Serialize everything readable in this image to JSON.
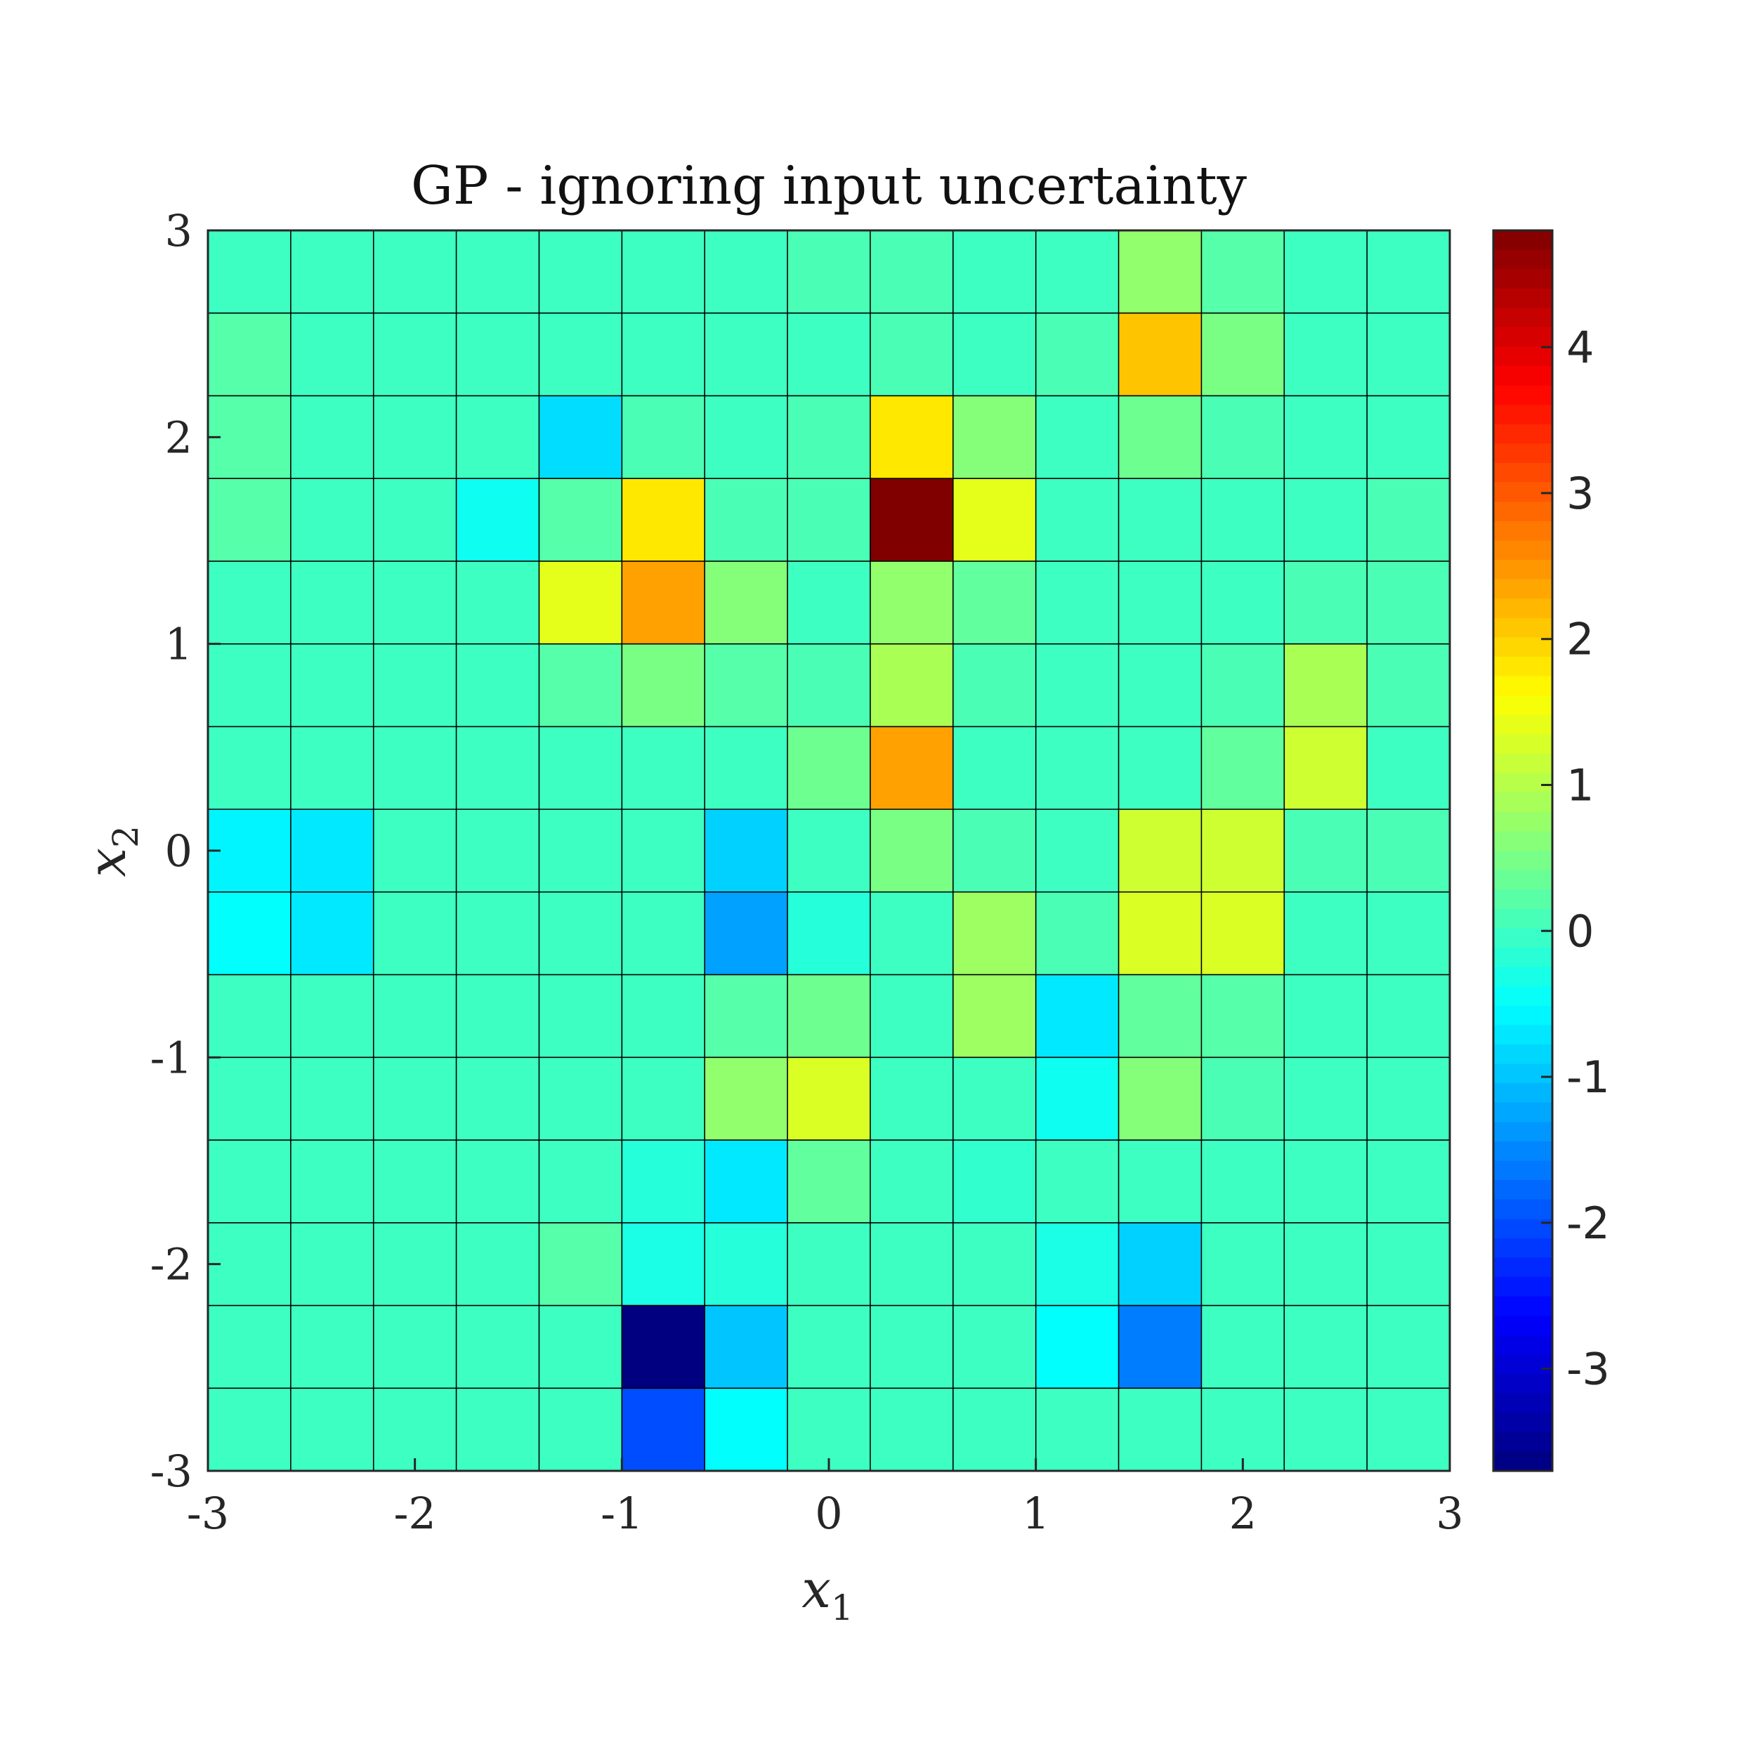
{
  "chart_data": {
    "type": "heatmap",
    "title": "GP - ignoring input uncertainty",
    "xlabel": "x",
    "xlabel_sub": "1",
    "ylabel": "x",
    "ylabel_sub": "2",
    "xlim": [
      -3,
      3
    ],
    "ylim": [
      -3,
      3
    ],
    "xticks": [
      -3,
      -2,
      -1,
      0,
      1,
      2,
      3
    ],
    "yticks": [
      -3,
      -2,
      -1,
      0,
      1,
      2,
      3
    ],
    "xtick_labels": [
      "-3",
      "-2",
      "-1",
      "0",
      "1",
      "2",
      "3"
    ],
    "ytick_labels": [
      "-3",
      "-2",
      "-1",
      "0",
      "1",
      "2",
      "3"
    ],
    "x_centers": [
      -2.8,
      -2.4,
      -2.0,
      -1.6,
      -1.2,
      -0.8,
      -0.4,
      0.0,
      0.4,
      0.8,
      1.2,
      1.6,
      2.0,
      2.4,
      2.8
    ],
    "y_centers": [
      2.8,
      2.4,
      2.0,
      1.6,
      1.2,
      0.8,
      0.4,
      0.0,
      -0.4,
      -0.8,
      -1.2,
      -1.6,
      -2.0,
      -2.4,
      -2.8
    ],
    "colormap": "jet",
    "colorbar": {
      "clim": [
        -3.7,
        4.8
      ],
      "ticks": [
        -3,
        -2,
        -1,
        0,
        1,
        2,
        3,
        4
      ],
      "tick_labels": [
        "-3",
        "-2",
        "-1",
        "0",
        "1",
        "2",
        "3",
        "4"
      ],
      "location": "right"
    },
    "grid": false,
    "values": [
      [
        0,
        0,
        0,
        0,
        0,
        0,
        0,
        0.1,
        0.1,
        0,
        0,
        0.7,
        0.2,
        0,
        0
      ],
      [
        0.2,
        0,
        0,
        0,
        0,
        0,
        0,
        0,
        0.1,
        0,
        0.1,
        2.1,
        0.5,
        0,
        0
      ],
      [
        0.2,
        0,
        0,
        0,
        -0.8,
        0.1,
        0,
        0.1,
        1.8,
        0.6,
        0,
        0.4,
        0.1,
        0,
        0
      ],
      [
        0.2,
        0,
        0,
        -0.4,
        0.2,
        1.8,
        0.1,
        0.1,
        4.8,
        1.4,
        0,
        0,
        0,
        0,
        0.1
      ],
      [
        0,
        0,
        0,
        0,
        1.4,
        2.4,
        0.6,
        0,
        0.7,
        0.3,
        0,
        0,
        0,
        0.1,
        0.1
      ],
      [
        0,
        0,
        0,
        0,
        0.2,
        0.5,
        0.2,
        0.1,
        0.9,
        0.1,
        0,
        0,
        0.1,
        0.9,
        0.1
      ],
      [
        0,
        0,
        0,
        0,
        0,
        0,
        0,
        0.4,
        2.4,
        0,
        0,
        0,
        0.3,
        1.2,
        0
      ],
      [
        -0.6,
        -0.7,
        0,
        0,
        0,
        0,
        -0.9,
        0,
        0.5,
        0.1,
        0,
        1.2,
        1.2,
        0.1,
        0.1
      ],
      [
        -0.5,
        -0.7,
        0,
        0,
        0,
        0,
        -1.3,
        -0.2,
        0,
        0.8,
        0.1,
        1.3,
        1.3,
        0,
        0
      ],
      [
        0,
        0,
        0,
        0,
        0,
        0,
        0.2,
        0.4,
        0,
        0.8,
        -0.7,
        0.3,
        0.2,
        0,
        0
      ],
      [
        0,
        0,
        0,
        0,
        0,
        0,
        0.7,
        1.3,
        0,
        0,
        -0.4,
        0.6,
        0.1,
        0,
        0
      ],
      [
        0,
        0,
        0,
        0,
        0,
        -0.2,
        -0.7,
        0.3,
        0,
        -0.1,
        0,
        0,
        0,
        0,
        0
      ],
      [
        0,
        0,
        0,
        0,
        0.2,
        -0.3,
        -0.2,
        0,
        0,
        0,
        -0.3,
        -0.9,
        0,
        0,
        0
      ],
      [
        0,
        0,
        0,
        0,
        0,
        -3.7,
        -1.0,
        0,
        0,
        0,
        -0.5,
        -1.6,
        0,
        0,
        0
      ],
      [
        0,
        0,
        0,
        0,
        0,
        -2.0,
        -0.5,
        0,
        0,
        0,
        0,
        0,
        0,
        0,
        0
      ]
    ]
  }
}
